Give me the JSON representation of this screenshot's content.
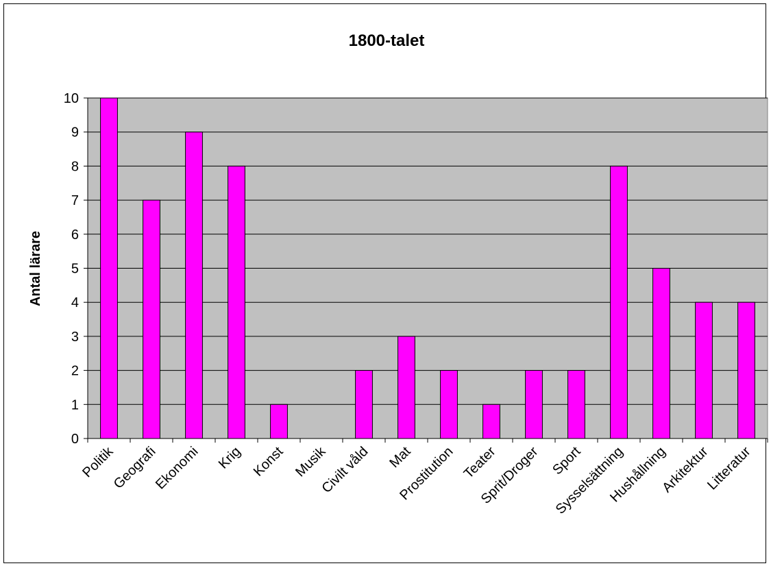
{
  "chart_data": {
    "type": "bar",
    "title": "1800-talet",
    "xlabel": "",
    "ylabel": "Antal lärare",
    "ylim": [
      0,
      10
    ],
    "yticks": [
      0,
      1,
      2,
      3,
      4,
      5,
      6,
      7,
      8,
      9,
      10
    ],
    "grid": true,
    "legend": "none",
    "categories": [
      "Politik",
      "Geografi",
      "Ekonomi",
      "Krig",
      "Konst",
      "Musik",
      "Civilt våld",
      "Mat",
      "Prostitution",
      "Teater",
      "Sprit/Droger",
      "Sport",
      "Sysselsättning",
      "Hushållning",
      "Arkitektur",
      "Litteratur"
    ],
    "values": [
      10,
      7,
      9,
      8,
      1,
      0,
      2,
      3,
      2,
      1,
      2,
      2,
      8,
      5,
      4,
      4
    ],
    "colors": {
      "bar_fill": "#ff00ff",
      "bar_stroke": "#000000",
      "plot_background": "#c0c0c0",
      "gridline": "#000000"
    }
  }
}
